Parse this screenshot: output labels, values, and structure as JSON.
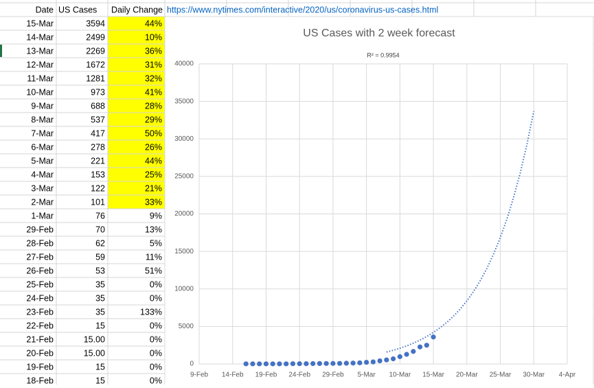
{
  "table": {
    "headers": [
      "Date",
      "US Cases",
      "Daily Change"
    ],
    "link": "https://www.nytimes.com/interactive/2020/us/coronavirus-us-cases.html",
    "highlight_color": "#ffff00",
    "rows": [
      {
        "date": "15-Mar",
        "cases": "3594",
        "change": "44%",
        "highlight": true
      },
      {
        "date": "14-Mar",
        "cases": "2499",
        "change": "10%",
        "highlight": true
      },
      {
        "date": "13-Mar",
        "cases": "2269",
        "change": "36%",
        "highlight": true
      },
      {
        "date": "12-Mar",
        "cases": "1672",
        "change": "31%",
        "highlight": true
      },
      {
        "date": "11-Mar",
        "cases": "1281",
        "change": "32%",
        "highlight": true
      },
      {
        "date": "10-Mar",
        "cases": "973",
        "change": "41%",
        "highlight": true
      },
      {
        "date": "9-Mar",
        "cases": "688",
        "change": "28%",
        "highlight": true
      },
      {
        "date": "8-Mar",
        "cases": "537",
        "change": "29%",
        "highlight": true
      },
      {
        "date": "7-Mar",
        "cases": "417",
        "change": "50%",
        "highlight": true
      },
      {
        "date": "6-Mar",
        "cases": "278",
        "change": "26%",
        "highlight": true
      },
      {
        "date": "5-Mar",
        "cases": "221",
        "change": "44%",
        "highlight": true
      },
      {
        "date": "4-Mar",
        "cases": "153",
        "change": "25%",
        "highlight": true
      },
      {
        "date": "3-Mar",
        "cases": "122",
        "change": "21%",
        "highlight": true
      },
      {
        "date": "2-Mar",
        "cases": "101",
        "change": "33%",
        "highlight": true
      },
      {
        "date": "1-Mar",
        "cases": "76",
        "change": "9%",
        "highlight": false
      },
      {
        "date": "29-Feb",
        "cases": "70",
        "change": "13%",
        "highlight": false
      },
      {
        "date": "28-Feb",
        "cases": "62",
        "change": "5%",
        "highlight": false
      },
      {
        "date": "27-Feb",
        "cases": "59",
        "change": "11%",
        "highlight": false
      },
      {
        "date": "26-Feb",
        "cases": "53",
        "change": "51%",
        "highlight": false
      },
      {
        "date": "25-Feb",
        "cases": "35",
        "change": "0%",
        "highlight": false
      },
      {
        "date": "24-Feb",
        "cases": "35",
        "change": "0%",
        "highlight": false
      },
      {
        "date": "23-Feb",
        "cases": "35",
        "change": "133%",
        "highlight": false
      },
      {
        "date": "22-Feb",
        "cases": "15",
        "change": "0%",
        "highlight": false
      },
      {
        "date": "21-Feb",
        "cases": "15.00",
        "change": "0%",
        "highlight": false
      },
      {
        "date": "20-Feb",
        "cases": "15.00",
        "change": "0%",
        "highlight": false
      },
      {
        "date": "19-Feb",
        "cases": "15",
        "change": "0%",
        "highlight": false
      },
      {
        "date": "18-Feb",
        "cases": "15",
        "change": "0%",
        "highlight": false
      }
    ]
  },
  "chart_data": {
    "type": "scatter",
    "title": "US Cases with 2 week forecast",
    "annotation": "R² = 0.9954",
    "x": [
      "16-Feb",
      "17-Feb",
      "18-Feb",
      "19-Feb",
      "20-Feb",
      "21-Feb",
      "22-Feb",
      "23-Feb",
      "24-Feb",
      "25-Feb",
      "26-Feb",
      "27-Feb",
      "28-Feb",
      "29-Feb",
      "1-Mar",
      "2-Mar",
      "3-Mar",
      "4-Mar",
      "5-Mar",
      "6-Mar",
      "7-Mar",
      "8-Mar",
      "9-Mar",
      "10-Mar",
      "11-Mar",
      "12-Mar",
      "13-Mar",
      "14-Mar",
      "15-Mar"
    ],
    "values": [
      15,
      15,
      15,
      15,
      15,
      15,
      15,
      35,
      35,
      35,
      53,
      59,
      62,
      70,
      76,
      101,
      122,
      153,
      221,
      278,
      417,
      537,
      688,
      973,
      1281,
      1672,
      2269,
      2499,
      3594
    ],
    "color": "#4472c4",
    "trendline": {
      "x": [
        "8-Mar",
        "9-Mar",
        "10-Mar",
        "11-Mar",
        "12-Mar",
        "13-Mar",
        "14-Mar",
        "15-Mar",
        "16-Mar",
        "17-Mar",
        "18-Mar",
        "19-Mar",
        "20-Mar",
        "21-Mar",
        "22-Mar",
        "23-Mar",
        "24-Mar",
        "25-Mar",
        "26-Mar",
        "27-Mar",
        "28-Mar",
        "29-Mar",
        "30-Mar"
      ],
      "values": [
        1590,
        1820,
        2100,
        2410,
        2770,
        3180,
        3650,
        4200,
        4820,
        5540,
        6370,
        7310,
        8400,
        9650,
        11090,
        12750,
        14650,
        16830,
        19340,
        22220,
        25530,
        29330,
        33700
      ]
    },
    "xlim": [
      "9-Feb",
      "4-Apr"
    ],
    "xticks": [
      "9-Feb",
      "14-Feb",
      "19-Feb",
      "24-Feb",
      "29-Feb",
      "5-Mar",
      "10-Mar",
      "15-Mar",
      "20-Mar",
      "25-Mar",
      "30-Mar",
      "4-Apr"
    ],
    "ylim": [
      0,
      40000
    ],
    "yticks": [
      0,
      5000,
      10000,
      15000,
      20000,
      25000,
      30000,
      35000,
      40000
    ],
    "grid": true
  }
}
